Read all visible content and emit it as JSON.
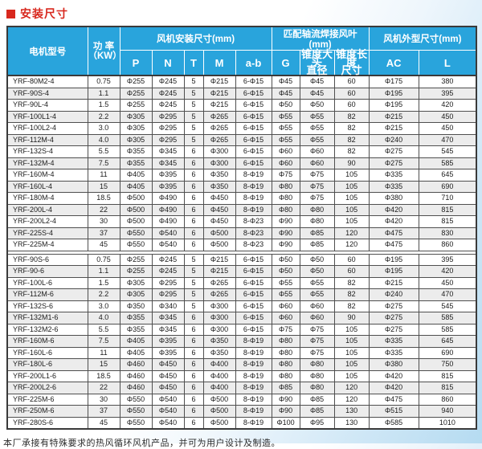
{
  "title": "安装尺寸",
  "colors": {
    "accent_red": "#d8281e",
    "header_blue": "#29a4dc",
    "row_alt": "#ececec",
    "bg_blue": "#b5dbf1"
  },
  "table": {
    "headers": {
      "model": "电机型号",
      "power": "功 率\n（KW）",
      "group_install": "风机安装尺寸(mm)",
      "group_blade": "匹配轴流焊接风叶(mm)",
      "group_outline": "风机外型尺寸(mm)",
      "sub": [
        "P",
        "N",
        "T",
        "M",
        "a-b",
        "G",
        "锥度大头\n直径",
        "锥度长度\n尺寸",
        "AC",
        "L"
      ]
    },
    "sections": [
      {
        "rows": [
          [
            "YRF-80M2-4",
            "0.75",
            "Φ255",
            "Φ245",
            "5",
            "Φ215",
            "6-Φ15",
            "Φ45",
            "Φ45",
            "60",
            "Φ175",
            "380"
          ],
          [
            "YRF-90S-4",
            "1.1",
            "Φ255",
            "Φ245",
            "5",
            "Φ215",
            "6-Φ15",
            "Φ45",
            "Φ45",
            "60",
            "Φ195",
            "395"
          ],
          [
            "YRF-90L-4",
            "1.5",
            "Φ255",
            "Φ245",
            "5",
            "Φ215",
            "6-Φ15",
            "Φ50",
            "Φ50",
            "60",
            "Φ195",
            "420"
          ],
          [
            "YRF-100L1-4",
            "2.2",
            "Φ305",
            "Φ295",
            "5",
            "Φ265",
            "6-Φ15",
            "Φ55",
            "Φ55",
            "82",
            "Φ215",
            "450"
          ],
          [
            "YRF-100L2-4",
            "3.0",
            "Φ305",
            "Φ295",
            "5",
            "Φ265",
            "6-Φ15",
            "Φ55",
            "Φ55",
            "82",
            "Φ215",
            "450"
          ],
          [
            "YRF-112M-4",
            "4.0",
            "Φ305",
            "Φ295",
            "5",
            "Φ265",
            "6-Φ15",
            "Φ55",
            "Φ55",
            "82",
            "Φ240",
            "470"
          ],
          [
            "YRF-132S-4",
            "5.5",
            "Φ355",
            "Φ345",
            "6",
            "Φ300",
            "6-Φ15",
            "Φ60",
            "Φ60",
            "82",
            "Φ275",
            "545"
          ],
          [
            "YRF-132M-4",
            "7.5",
            "Φ355",
            "Φ345",
            "6",
            "Φ300",
            "6-Φ15",
            "Φ60",
            "Φ60",
            "90",
            "Φ275",
            "585"
          ],
          [
            "YRF-160M-4",
            "11",
            "Φ405",
            "Φ395",
            "6",
            "Φ350",
            "8-Φ19",
            "Φ75",
            "Φ75",
            "105",
            "Φ335",
            "645"
          ],
          [
            "YRF-160L-4",
            "15",
            "Φ405",
            "Φ395",
            "6",
            "Φ350",
            "8-Φ19",
            "Φ80",
            "Φ75",
            "105",
            "Φ335",
            "690"
          ],
          [
            "YRF-180M-4",
            "18.5",
            "Φ500",
            "Φ490",
            "6",
            "Φ450",
            "8-Φ19",
            "Φ80",
            "Φ75",
            "105",
            "Φ380",
            "710"
          ],
          [
            "YRF-200L-4",
            "22",
            "Φ500",
            "Φ490",
            "6",
            "Φ450",
            "8-Φ19",
            "Φ80",
            "Φ80",
            "105",
            "Φ420",
            "815"
          ],
          [
            "YRF-200L2-4",
            "30",
            "Φ500",
            "Φ490",
            "6",
            "Φ450",
            "8-Φ23",
            "Φ90",
            "Φ80",
            "105",
            "Φ420",
            "815"
          ],
          [
            "YRF-225S-4",
            "37",
            "Φ550",
            "Φ540",
            "6",
            "Φ500",
            "8-Φ23",
            "Φ90",
            "Φ85",
            "120",
            "Φ475",
            "830"
          ],
          [
            "YRF-225M-4",
            "45",
            "Φ550",
            "Φ540",
            "6",
            "Φ500",
            "8-Φ23",
            "Φ90",
            "Φ85",
            "120",
            "Φ475",
            "860"
          ]
        ]
      },
      {
        "rows": [
          [
            "YRF-90S-6",
            "0.75",
            "Φ255",
            "Φ245",
            "5",
            "Φ215",
            "6-Φ15",
            "Φ50",
            "Φ50",
            "60",
            "Φ195",
            "395"
          ],
          [
            "YRF-90-6",
            "1.1",
            "Φ255",
            "Φ245",
            "5",
            "Φ215",
            "6-Φ15",
            "Φ50",
            "Φ50",
            "60",
            "Φ195",
            "420"
          ],
          [
            "YRF-100L-6",
            "1.5",
            "Φ305",
            "Φ295",
            "5",
            "Φ265",
            "6-Φ15",
            "Φ55",
            "Φ55",
            "82",
            "Φ215",
            "450"
          ],
          [
            "YRF-112M-6",
            "2.2",
            "Φ305",
            "Φ295",
            "5",
            "Φ265",
            "6-Φ15",
            "Φ55",
            "Φ55",
            "82",
            "Φ240",
            "470"
          ],
          [
            "YRF-132S-6",
            "3.0",
            "Φ350",
            "Φ340",
            "5",
            "Φ300",
            "6-Φ15",
            "Φ60",
            "Φ60",
            "82",
            "Φ275",
            "545"
          ],
          [
            "YRF-132M1-6",
            "4.0",
            "Φ355",
            "Φ345",
            "6",
            "Φ300",
            "6-Φ15",
            "Φ60",
            "Φ60",
            "90",
            "Φ275",
            "585"
          ],
          [
            "YRF-132M2-6",
            "5.5",
            "Φ355",
            "Φ345",
            "6",
            "Φ300",
            "6-Φ15",
            "Φ75",
            "Φ75",
            "105",
            "Φ275",
            "585"
          ],
          [
            "YRF-160M-6",
            "7.5",
            "Φ405",
            "Φ395",
            "6",
            "Φ350",
            "8-Φ19",
            "Φ80",
            "Φ75",
            "105",
            "Φ335",
            "645"
          ],
          [
            "YRF-160L-6",
            "11",
            "Φ405",
            "Φ395",
            "6",
            "Φ350",
            "8-Φ19",
            "Φ80",
            "Φ75",
            "105",
            "Φ335",
            "690"
          ],
          [
            "YRF-180L-6",
            "15",
            "Φ460",
            "Φ450",
            "6",
            "Φ400",
            "8-Φ19",
            "Φ80",
            "Φ80",
            "105",
            "Φ380",
            "750"
          ],
          [
            "YRF-200L1-6",
            "18.5",
            "Φ460",
            "Φ450",
            "6",
            "Φ400",
            "8-Φ19",
            "Φ80",
            "Φ80",
            "105",
            "Φ420",
            "815"
          ],
          [
            "YRF-200L2-6",
            "22",
            "Φ460",
            "Φ450",
            "6",
            "Φ400",
            "8-Φ19",
            "Φ85",
            "Φ80",
            "120",
            "Φ420",
            "815"
          ],
          [
            "YRF-225M-6",
            "30",
            "Φ550",
            "Φ540",
            "6",
            "Φ500",
            "8-Φ19",
            "Φ90",
            "Φ85",
            "120",
            "Φ475",
            "860"
          ],
          [
            "YRF-250M-6",
            "37",
            "Φ550",
            "Φ540",
            "6",
            "Φ500",
            "8-Φ19",
            "Φ90",
            "Φ85",
            "130",
            "Φ515",
            "940"
          ],
          [
            "YRF-280S-6",
            "45",
            "Φ550",
            "Φ540",
            "6",
            "Φ500",
            "8-Φ19",
            "Φ100",
            "Φ95",
            "130",
            "Φ585",
            "1010"
          ]
        ]
      }
    ]
  },
  "footer": "本厂承接有特殊要求的热风循环风机产品，并可为用户设计及制造。"
}
